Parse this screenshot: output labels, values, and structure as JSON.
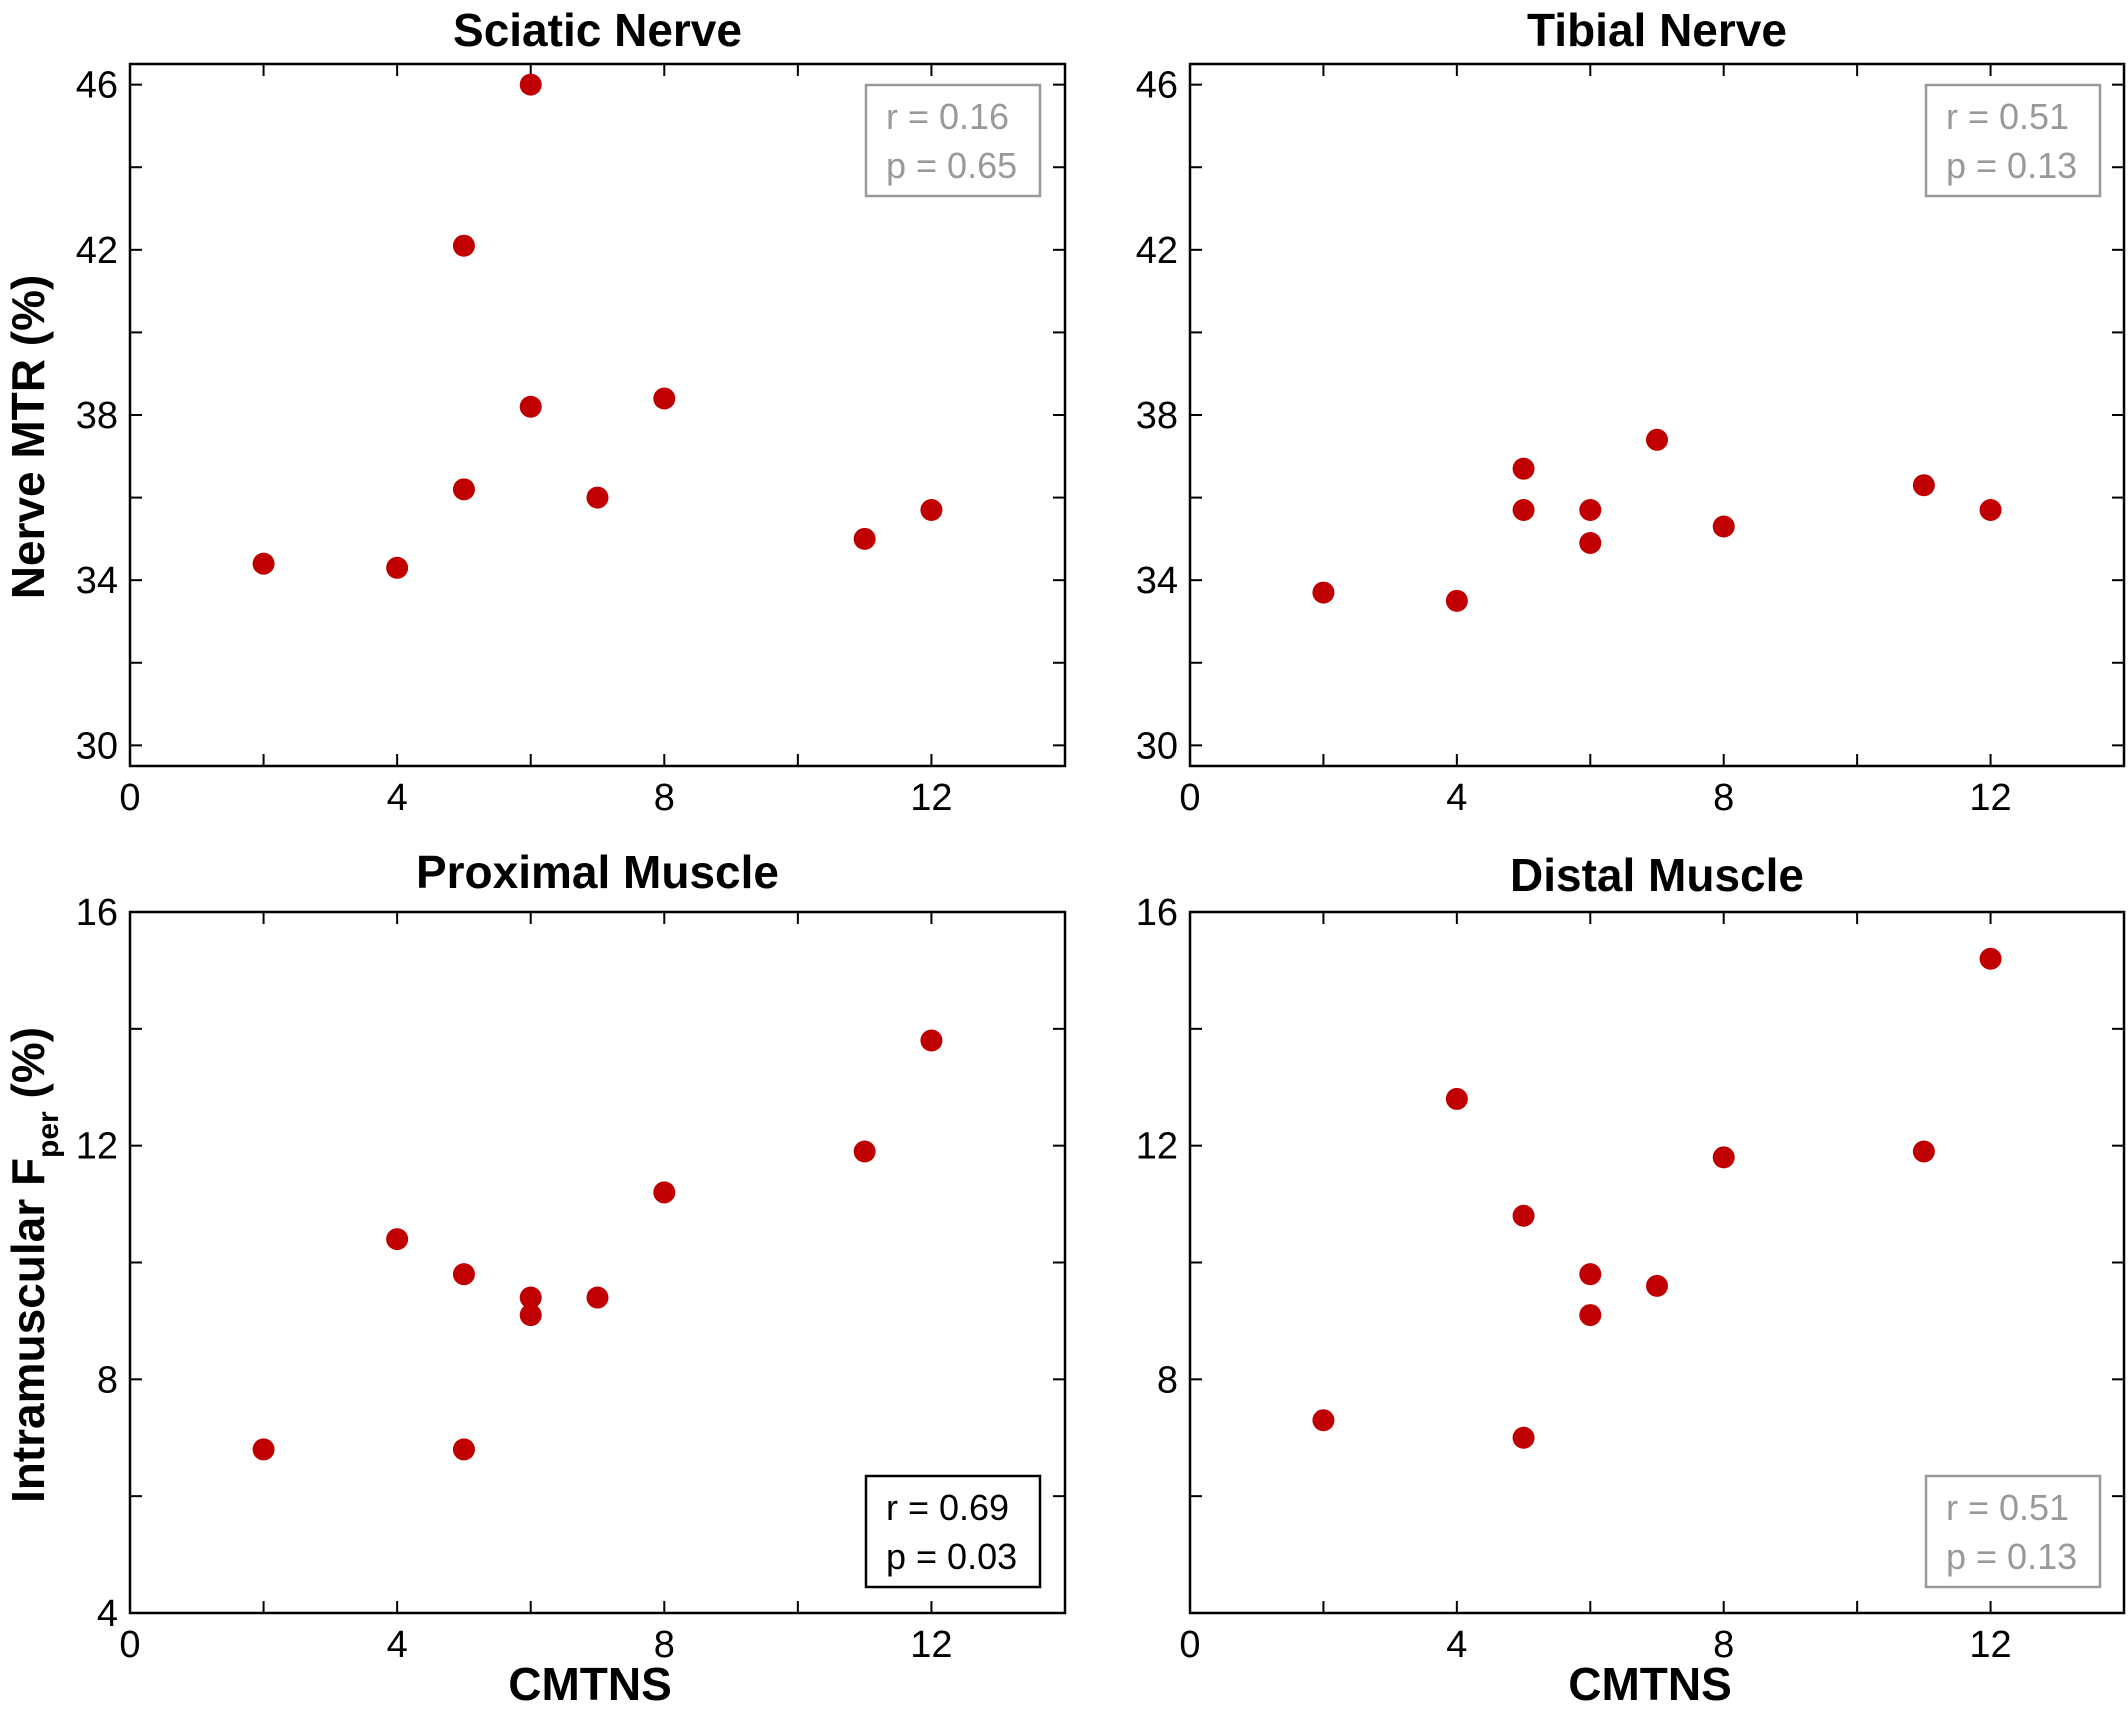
{
  "figure": {
    "ylabel_top": "Nerve MTR (%)",
    "ylabel_bottom_main": "Intramuscular F",
    "ylabel_bottom_sub": "per",
    "ylabel_bottom_unit": " (%)",
    "xlabel": "CMTNS"
  },
  "chart_data": [
    {
      "type": "scatter",
      "title": "Sciatic Nerve",
      "xlim": [
        0,
        14
      ],
      "ylim": [
        29.5,
        46.5
      ],
      "xticks": [
        0,
        4,
        8,
        12
      ],
      "yticks": [
        30,
        34,
        38,
        42,
        46
      ],
      "marker_color": "#c00000",
      "points": [
        {
          "x": 2,
          "y": 34.4
        },
        {
          "x": 4,
          "y": 34.3
        },
        {
          "x": 5,
          "y": 42.1
        },
        {
          "x": 5,
          "y": 36.2
        },
        {
          "x": 6,
          "y": 46.0
        },
        {
          "x": 6,
          "y": 38.2
        },
        {
          "x": 7,
          "y": 36.0
        },
        {
          "x": 8,
          "y": 38.4
        },
        {
          "x": 11,
          "y": 35.0
        },
        {
          "x": 12,
          "y": 35.7
        }
      ],
      "stats": {
        "r": "r = 0.16",
        "p": "p = 0.65",
        "significant": false
      }
    },
    {
      "type": "scatter",
      "title": "Tibial Nerve",
      "xlim": [
        0,
        14
      ],
      "ylim": [
        29.5,
        46.5
      ],
      "xticks": [
        0,
        4,
        8,
        12
      ],
      "yticks": [
        30,
        34,
        38,
        42,
        46
      ],
      "marker_color": "#c00000",
      "points": [
        {
          "x": 2,
          "y": 33.7
        },
        {
          "x": 4,
          "y": 33.5
        },
        {
          "x": 5,
          "y": 36.7
        },
        {
          "x": 5,
          "y": 35.7
        },
        {
          "x": 6,
          "y": 35.7
        },
        {
          "x": 6,
          "y": 34.9
        },
        {
          "x": 7,
          "y": 37.4
        },
        {
          "x": 8,
          "y": 35.3
        },
        {
          "x": 11,
          "y": 36.3
        },
        {
          "x": 12,
          "y": 35.7
        }
      ],
      "stats": {
        "r": "r = 0.51",
        "p": "p = 0.13",
        "significant": false
      }
    },
    {
      "type": "scatter",
      "title": "Proximal Muscle",
      "xlim": [
        0,
        14
      ],
      "ylim": [
        4,
        16
      ],
      "xticks": [
        0,
        4,
        8,
        12
      ],
      "yticks": [
        4,
        8,
        12,
        16
      ],
      "marker_color": "#c00000",
      "points": [
        {
          "x": 2,
          "y": 6.8
        },
        {
          "x": 4,
          "y": 10.4
        },
        {
          "x": 5,
          "y": 9.8
        },
        {
          "x": 5,
          "y": 6.8
        },
        {
          "x": 6,
          "y": 9.4
        },
        {
          "x": 6,
          "y": 9.1
        },
        {
          "x": 7,
          "y": 9.4
        },
        {
          "x": 8,
          "y": 11.2
        },
        {
          "x": 11,
          "y": 11.9
        },
        {
          "x": 12,
          "y": 13.8
        }
      ],
      "stats": {
        "r": "r = 0.69",
        "p": "p = 0.03",
        "significant": true
      }
    },
    {
      "type": "scatter",
      "title": "Distal Muscle",
      "xlim": [
        0,
        14
      ],
      "ylim": [
        4,
        16
      ],
      "xticks": [
        0,
        4,
        8,
        12
      ],
      "yticks": [
        8,
        12,
        16
      ],
      "marker_color": "#c00000",
      "points": [
        {
          "x": 2,
          "y": 7.3
        },
        {
          "x": 4,
          "y": 12.8
        },
        {
          "x": 5,
          "y": 10.8
        },
        {
          "x": 5,
          "y": 7.0
        },
        {
          "x": 6,
          "y": 9.8
        },
        {
          "x": 6,
          "y": 9.1
        },
        {
          "x": 7,
          "y": 9.6
        },
        {
          "x": 8,
          "y": 11.8
        },
        {
          "x": 11,
          "y": 11.9
        },
        {
          "x": 12,
          "y": 15.2
        }
      ],
      "stats": {
        "r": "r = 0.51",
        "p": "p = 0.13",
        "significant": false
      }
    }
  ]
}
